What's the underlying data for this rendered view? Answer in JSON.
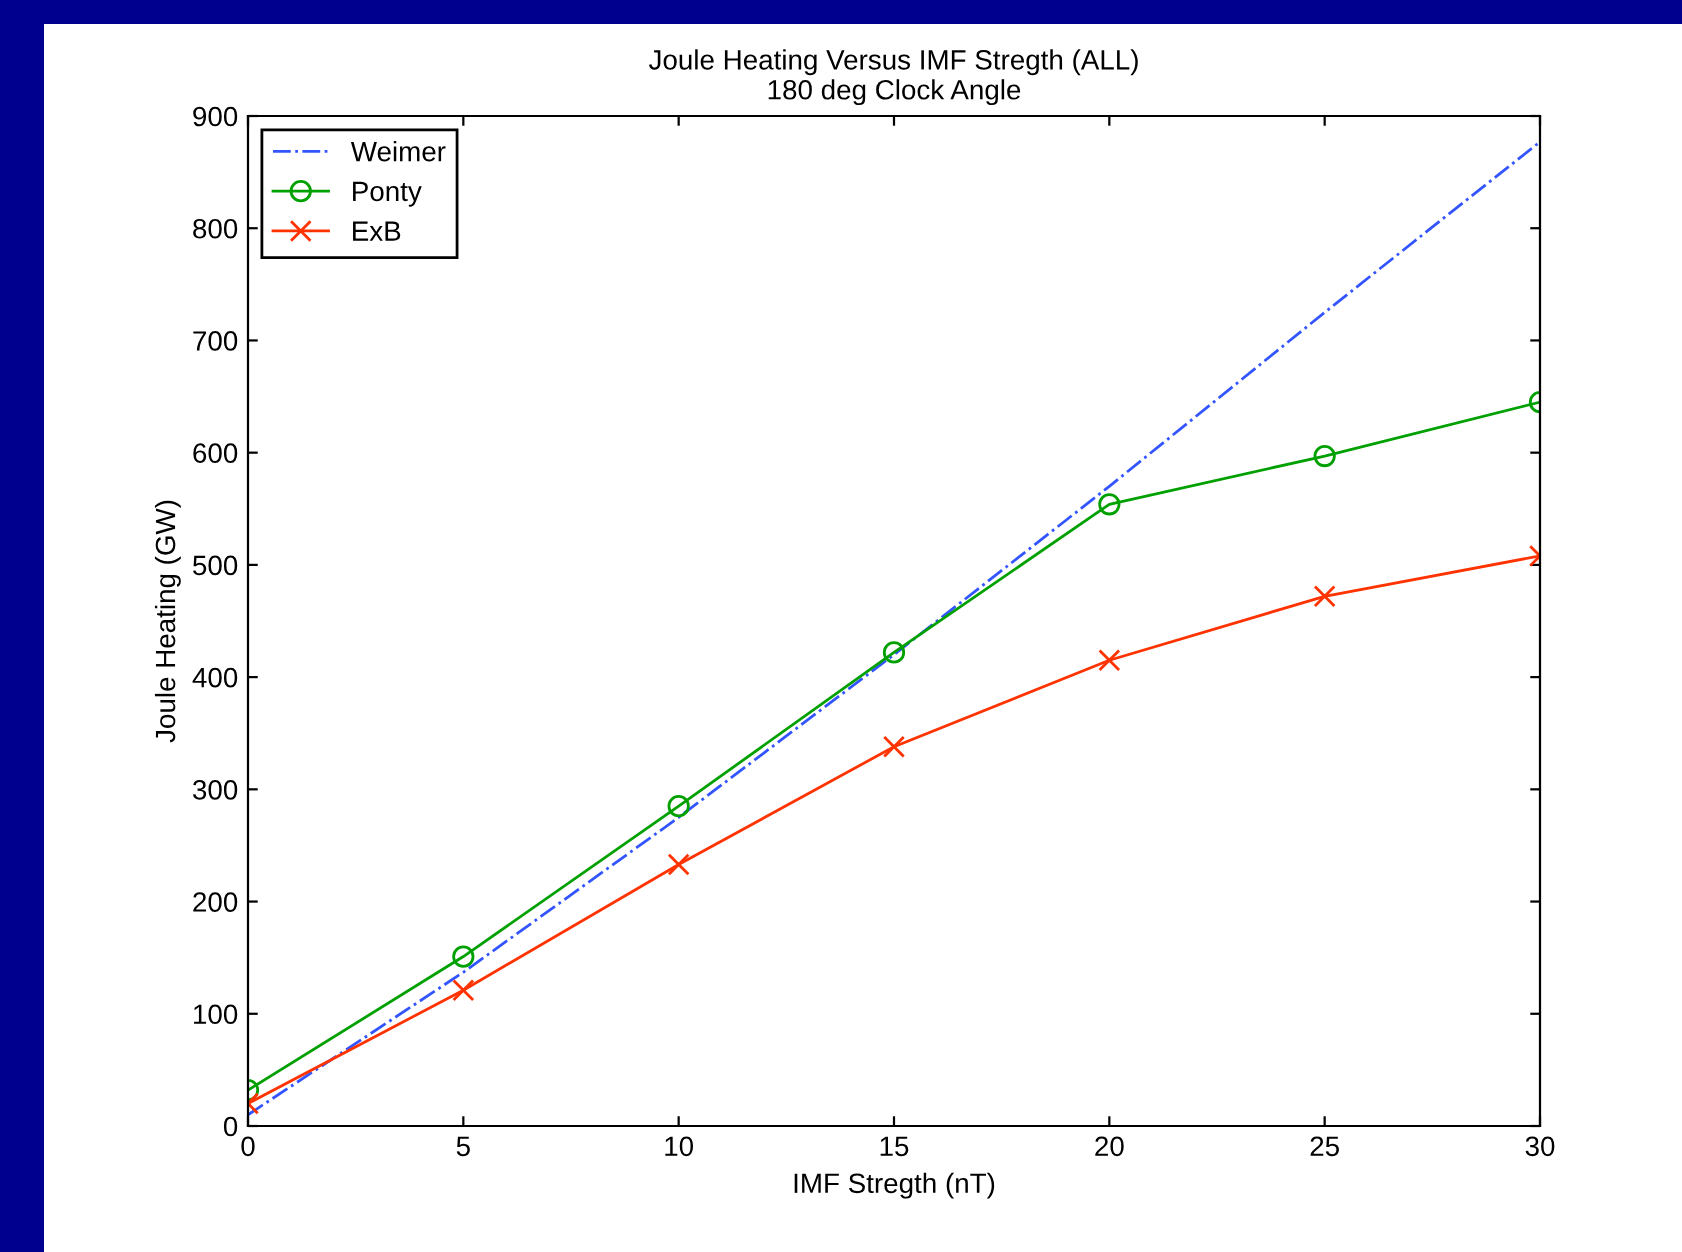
{
  "chart_data": {
    "type": "line",
    "title": "Joule Heating Versus IMF Stregth (ALL)",
    "subtitle": "180 deg Clock Angle",
    "xlabel": "IMF Stregth (nT)",
    "ylabel": "Joule Heating (GW)",
    "x": [
      0,
      5,
      10,
      15,
      20,
      25,
      30
    ],
    "series": [
      {
        "name": "Weimer",
        "color": "#3355ff",
        "line_style": "dashdot",
        "marker": "none",
        "values": [
          10,
          137,
          275,
          420,
          570,
          725,
          877
        ]
      },
      {
        "name": "Ponty",
        "color": "#00a000",
        "line_style": "solid",
        "marker": "circle",
        "values": [
          32,
          151,
          285,
          422,
          554,
          597,
          645
        ]
      },
      {
        "name": "ExB",
        "color": "#ff3300",
        "line_style": "solid",
        "marker": "cross",
        "values": [
          20,
          121,
          233,
          338,
          415,
          472,
          508
        ]
      }
    ],
    "xlim": [
      0,
      30
    ],
    "xticks": [
      0,
      5,
      10,
      15,
      20,
      25,
      30
    ],
    "ylim": [
      0,
      900
    ],
    "yticks": [
      0,
      100,
      200,
      300,
      400,
      500,
      600,
      700,
      800,
      900
    ],
    "grid": false,
    "legend": "top left"
  }
}
